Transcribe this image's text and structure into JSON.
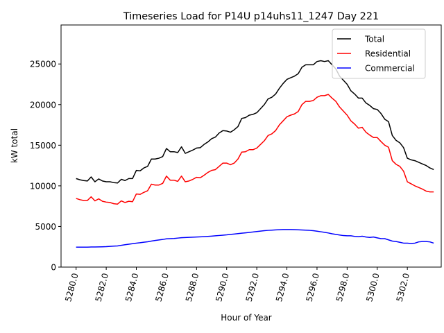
{
  "chart_data": {
    "type": "line",
    "title": "Timeseries Load for P14U p14uhs11_1247  Day 221",
    "xlabel": "Hour of Year",
    "ylabel": "kW total",
    "xlim": [
      5279.0,
      5304.25
    ],
    "ylim": [
      0,
      29800
    ],
    "x_ticks": [
      5280,
      5282,
      5284,
      5286,
      5288,
      5290,
      5292,
      5294,
      5296,
      5298,
      5300,
      5302
    ],
    "x_tick_labels": [
      "5280.0",
      "5282.0",
      "5284.0",
      "5286.0",
      "5288.0",
      "5290.0",
      "5292.0",
      "5294.0",
      "5296.0",
      "5298.0",
      "5300.0",
      "5302.0"
    ],
    "y_ticks": [
      0,
      5000,
      10000,
      15000,
      20000,
      25000
    ],
    "y_tick_labels": [
      "0",
      "5000",
      "10000",
      "15000",
      "20000",
      "25000"
    ],
    "legend_position": "top-right",
    "x": [
      5280.0,
      5280.25,
      5280.5,
      5280.75,
      5281.0,
      5281.25,
      5281.5,
      5281.75,
      5282.0,
      5282.25,
      5282.5,
      5282.75,
      5283.0,
      5283.25,
      5283.5,
      5283.75,
      5284.0,
      5284.25,
      5284.5,
      5284.75,
      5285.0,
      5285.25,
      5285.5,
      5285.75,
      5286.0,
      5286.25,
      5286.5,
      5286.75,
      5287.0,
      5287.25,
      5287.5,
      5287.75,
      5288.0,
      5288.25,
      5288.5,
      5288.75,
      5289.0,
      5289.25,
      5289.5,
      5289.75,
      5290.0,
      5290.25,
      5290.5,
      5290.75,
      5291.0,
      5291.25,
      5291.5,
      5291.75,
      5292.0,
      5292.25,
      5292.5,
      5292.75,
      5293.0,
      5293.25,
      5293.5,
      5293.75,
      5294.0,
      5294.25,
      5294.5,
      5294.75,
      5295.0,
      5295.25,
      5295.5,
      5295.75,
      5296.0,
      5296.25,
      5296.5,
      5296.75,
      5297.0,
      5297.25,
      5297.5,
      5297.75,
      5298.0,
      5298.25,
      5298.5,
      5298.75,
      5299.0,
      5299.25,
      5299.5,
      5299.75,
      5300.0,
      5300.25,
      5300.5,
      5300.75,
      5301.0,
      5301.25,
      5301.5,
      5301.75,
      5302.0,
      5302.25,
      5302.5,
      5302.75,
      5303.0,
      5303.25,
      5303.5,
      5303.75
    ],
    "series": [
      {
        "name": "Total",
        "color": "#000000",
        "values": [
          10900,
          10750,
          10650,
          10600,
          11100,
          10500,
          10850,
          10600,
          10500,
          10500,
          10400,
          10350,
          10800,
          10650,
          10900,
          10900,
          11900,
          11850,
          12200,
          12400,
          13300,
          13300,
          13400,
          13600,
          14600,
          14200,
          14200,
          14100,
          14800,
          14000,
          14200,
          14400,
          14650,
          14700,
          15100,
          15400,
          15800,
          16000,
          16500,
          16800,
          16750,
          16600,
          16900,
          17300,
          18300,
          18400,
          18700,
          18800,
          19000,
          19500,
          20000,
          20700,
          20900,
          21300,
          22000,
          22600,
          23100,
          23300,
          23500,
          23800,
          24600,
          24900,
          24900,
          24900,
          25300,
          25400,
          25300,
          25400,
          24900,
          24400,
          23500,
          23000,
          22500,
          21700,
          21300,
          20800,
          20800,
          20200,
          19900,
          19500,
          19400,
          18900,
          18200,
          17900,
          16200,
          15600,
          15300,
          14700,
          13400,
          13200,
          13100,
          12900,
          12700,
          12500,
          12200,
          12000
        ]
      },
      {
        "name": "Residential",
        "color": "#ff0000",
        "values": [
          8450,
          8300,
          8200,
          8200,
          8650,
          8150,
          8400,
          8100,
          8000,
          7950,
          7800,
          7750,
          8150,
          7950,
          8100,
          8050,
          9000,
          8950,
          9200,
          9400,
          10200,
          10100,
          10100,
          10300,
          11200,
          10700,
          10700,
          10550,
          11200,
          10500,
          10600,
          10800,
          11050,
          11000,
          11300,
          11650,
          11900,
          12000,
          12400,
          12800,
          12800,
          12600,
          12800,
          13300,
          14150,
          14200,
          14450,
          14450,
          14650,
          15100,
          15550,
          16200,
          16400,
          16800,
          17500,
          18000,
          18500,
          18700,
          18850,
          19150,
          20000,
          20400,
          20400,
          20500,
          20900,
          21100,
          21100,
          21250,
          20800,
          20400,
          19700,
          19200,
          18700,
          18000,
          17600,
          17100,
          17200,
          16600,
          16250,
          15950,
          15950,
          15450,
          15000,
          14750,
          13100,
          12650,
          12400,
          11800,
          10500,
          10250,
          10000,
          9800,
          9600,
          9350,
          9250,
          9250
        ]
      },
      {
        "name": "Commercial",
        "color": "#0000ff",
        "values": [
          2450,
          2450,
          2450,
          2450,
          2480,
          2480,
          2490,
          2500,
          2520,
          2550,
          2580,
          2600,
          2680,
          2750,
          2820,
          2880,
          2950,
          3000,
          3060,
          3120,
          3200,
          3280,
          3340,
          3400,
          3480,
          3500,
          3520,
          3570,
          3620,
          3640,
          3660,
          3680,
          3700,
          3720,
          3750,
          3780,
          3810,
          3850,
          3890,
          3930,
          3970,
          4020,
          4070,
          4120,
          4170,
          4220,
          4270,
          4320,
          4380,
          4430,
          4480,
          4520,
          4550,
          4580,
          4600,
          4620,
          4620,
          4620,
          4610,
          4590,
          4570,
          4550,
          4520,
          4480,
          4420,
          4350,
          4280,
          4200,
          4100,
          4020,
          3950,
          3880,
          3850,
          3850,
          3780,
          3750,
          3800,
          3700,
          3650,
          3700,
          3600,
          3500,
          3500,
          3350,
          3200,
          3150,
          3050,
          2950,
          2950,
          2900,
          2950,
          3100,
          3150,
          3150,
          3100,
          2950
        ]
      }
    ]
  }
}
